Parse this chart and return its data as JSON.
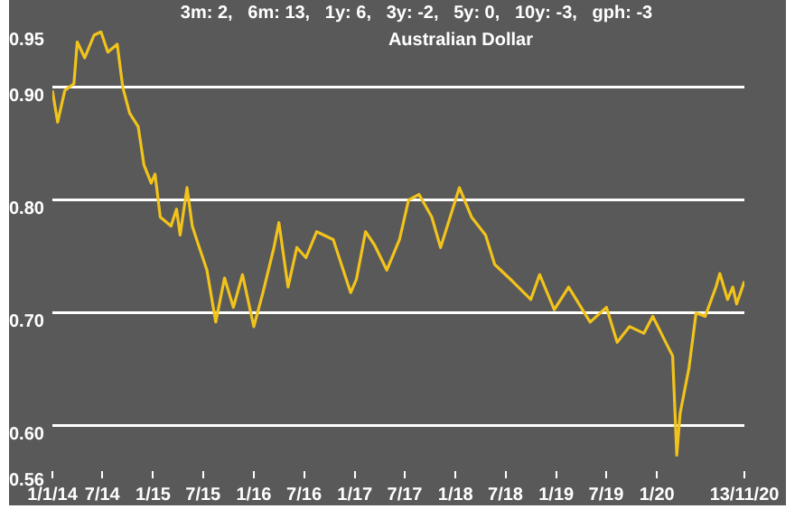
{
  "chart_data": {
    "type": "line",
    "title": "Australian Dollar",
    "subtitle": "3m: 2,   6m: 13,   1y: 6,   3y: -2,   5y: 0,   10y: -3,   gph: -3",
    "x": [
      "2014-01-01",
      "2014-01-20",
      "2014-02-15",
      "2014-03-20",
      "2014-04-01",
      "2014-04-28",
      "2014-06-01",
      "2014-06-26",
      "2014-07-21",
      "2014-08-24",
      "2014-09-13",
      "2014-10-08",
      "2014-11-08",
      "2014-11-29",
      "2014-12-25",
      "2015-01-08",
      "2015-01-27",
      "2015-03-07",
      "2015-03-27",
      "2015-04-09",
      "2015-05-04",
      "2015-05-23",
      "2015-06-12",
      "2015-07-15",
      "2015-08-16",
      "2015-09-17",
      "2015-10-19",
      "2015-11-21",
      "2016-01-01",
      "2016-02-03",
      "2016-03-14",
      "2016-04-01",
      "2016-05-04",
      "2016-06-05",
      "2016-07-08",
      "2016-08-16",
      "2016-10-15",
      "2016-12-17",
      "2017-01-07",
      "2017-02-09",
      "2017-03-14",
      "2017-04-27",
      "2017-06-12",
      "2017-07-15",
      "2017-08-22",
      "2017-10-07",
      "2017-11-08",
      "2018-01-15",
      "2018-02-28",
      "2018-04-20",
      "2018-05-23",
      "2018-07-27",
      "2018-10-01",
      "2018-11-02",
      "2018-12-25",
      "2019-02-15",
      "2019-05-04",
      "2019-07-02",
      "2019-08-10",
      "2019-09-24",
      "2019-11-15",
      "2019-12-17",
      "2020-02-02",
      "2020-02-27",
      "2020-03-13",
      "2020-03-25",
      "2020-04-26",
      "2020-05-22",
      "2020-06-24",
      "2020-08-02",
      "2020-08-16",
      "2020-09-13",
      "2020-10-02",
      "2020-10-16",
      "2020-11-13"
    ],
    "series": [
      {
        "color": "#f2c31b",
        "values": [
          0.897,
          0.869,
          0.897,
          0.903,
          0.94,
          0.926,
          0.946,
          0.949,
          0.931,
          0.938,
          0.9,
          0.877,
          0.865,
          0.831,
          0.815,
          0.823,
          0.785,
          0.777,
          0.792,
          0.769,
          0.811,
          0.777,
          0.762,
          0.738,
          0.692,
          0.731,
          0.705,
          0.734,
          0.688,
          0.718,
          0.758,
          0.78,
          0.723,
          0.758,
          0.749,
          0.772,
          0.765,
          0.718,
          0.73,
          0.772,
          0.76,
          0.738,
          0.765,
          0.8,
          0.805,
          0.785,
          0.758,
          0.811,
          0.785,
          0.769,
          0.743,
          0.728,
          0.712,
          0.734,
          0.703,
          0.723,
          0.692,
          0.705,
          0.674,
          0.688,
          0.682,
          0.697,
          0.674,
          0.662,
          0.574,
          0.611,
          0.651,
          0.7,
          0.697,
          0.723,
          0.735,
          0.712,
          0.723,
          0.708,
          0.728
        ]
      }
    ],
    "xlim": [
      "2014-01-01",
      "2020-11-13"
    ],
    "xticks": [
      {
        "value": "2014-01-01",
        "label": "1/1/14"
      },
      {
        "value": "2014-07-01",
        "label": "7/14"
      },
      {
        "value": "2015-01-01",
        "label": "1/15"
      },
      {
        "value": "2015-07-01",
        "label": "7/15"
      },
      {
        "value": "2016-01-01",
        "label": "1/16"
      },
      {
        "value": "2016-07-01",
        "label": "7/16"
      },
      {
        "value": "2017-01-01",
        "label": "1/17"
      },
      {
        "value": "2017-07-01",
        "label": "7/17"
      },
      {
        "value": "2018-01-01",
        "label": "1/18"
      },
      {
        "value": "2018-07-01",
        "label": "7/18"
      },
      {
        "value": "2019-01-01",
        "label": "1/19"
      },
      {
        "value": "2019-07-01",
        "label": "7/19"
      },
      {
        "value": "2020-01-01",
        "label": "1/20"
      },
      {
        "value": "2020-11-13",
        "label": "13/11/20"
      }
    ],
    "ylim": [
      0.56,
      0.95
    ],
    "yticks": [
      {
        "value": 0.56,
        "label": "0.56"
      },
      {
        "value": 0.6,
        "label": "0.60"
      },
      {
        "value": 0.7,
        "label": "0.70"
      },
      {
        "value": 0.8,
        "label": "0.80"
      },
      {
        "value": 0.9,
        "label": "0.90"
      },
      {
        "value": 0.95,
        "label": "0.95"
      }
    ],
    "grid": "y",
    "legend": false,
    "marker": "none",
    "line_style": "solid"
  }
}
